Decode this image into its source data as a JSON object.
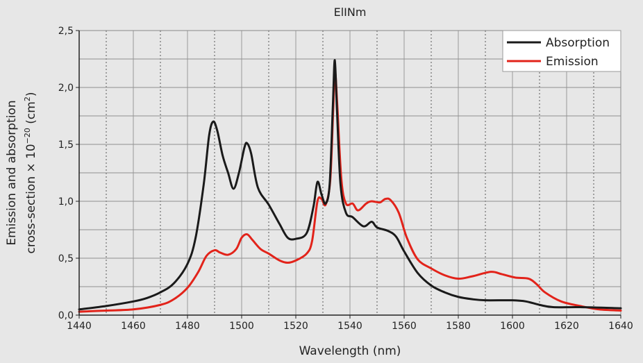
{
  "chart_data": {
    "type": "line",
    "title": "ElINm",
    "xlabel": "Wavelength (nm)",
    "ylabel_line1": "Emission and absorption",
    "ylabel_line2_pre": "cross-section × 10",
    "ylabel_line2_exp": "−20",
    "ylabel_line2_unit": " (cm",
    "ylabel_line2_unit_exp": "2",
    "ylabel_line2_close": ")",
    "xlim": [
      1440,
      1640
    ],
    "ylim": [
      0,
      2.5
    ],
    "x_ticks": [
      1440,
      1460,
      1480,
      1500,
      1520,
      1540,
      1560,
      1580,
      1600,
      1620,
      1640
    ],
    "x_tick_labels": [
      "1440",
      "1460",
      "1480",
      "1500",
      "1520",
      "1540",
      "1560",
      "1580",
      "1600",
      "1620",
      "1640"
    ],
    "y_ticks": [
      0,
      0.5,
      1.0,
      1.5,
      2.0,
      2.5
    ],
    "y_tick_labels": [
      "0,0",
      "0,5",
      "1,0",
      "1,5",
      "2,0",
      "2,5"
    ],
    "grid": true,
    "legend_position": "top-right",
    "series": [
      {
        "name": "Absorption",
        "color": "#1a1a1a",
        "points": [
          [
            1440,
            0.05
          ],
          [
            1450,
            0.08
          ],
          [
            1460,
            0.12
          ],
          [
            1465,
            0.15
          ],
          [
            1470,
            0.2
          ],
          [
            1475,
            0.28
          ],
          [
            1480,
            0.45
          ],
          [
            1483,
            0.68
          ],
          [
            1486,
            1.15
          ],
          [
            1488,
            1.58
          ],
          [
            1489.5,
            1.7
          ],
          [
            1491,
            1.62
          ],
          [
            1493,
            1.4
          ],
          [
            1495,
            1.25
          ],
          [
            1497,
            1.11
          ],
          [
            1499,
            1.25
          ],
          [
            1501,
            1.47
          ],
          [
            1502,
            1.51
          ],
          [
            1503.5,
            1.42
          ],
          [
            1506,
            1.12
          ],
          [
            1510,
            0.97
          ],
          [
            1514,
            0.8
          ],
          [
            1517,
            0.68
          ],
          [
            1520,
            0.67
          ],
          [
            1524,
            0.72
          ],
          [
            1526.5,
            0.95
          ],
          [
            1528,
            1.17
          ],
          [
            1529.5,
            1.06
          ],
          [
            1531,
            0.98
          ],
          [
            1532.5,
            1.15
          ],
          [
            1533.7,
            1.85
          ],
          [
            1534.4,
            2.24
          ],
          [
            1535.2,
            1.8
          ],
          [
            1536.5,
            1.15
          ],
          [
            1538.5,
            0.9
          ],
          [
            1541,
            0.86
          ],
          [
            1545,
            0.78
          ],
          [
            1548,
            0.82
          ],
          [
            1550,
            0.77
          ],
          [
            1554,
            0.74
          ],
          [
            1557,
            0.69
          ],
          [
            1560,
            0.56
          ],
          [
            1565,
            0.37
          ],
          [
            1570,
            0.26
          ],
          [
            1575,
            0.2
          ],
          [
            1580,
            0.16
          ],
          [
            1585,
            0.14
          ],
          [
            1590,
            0.13
          ],
          [
            1600,
            0.13
          ],
          [
            1605,
            0.12
          ],
          [
            1610,
            0.09
          ],
          [
            1615,
            0.07
          ],
          [
            1625,
            0.07
          ],
          [
            1640,
            0.06
          ]
        ]
      },
      {
        "name": "Emission",
        "color": "#e2231a",
        "points": [
          [
            1440,
            0.03
          ],
          [
            1450,
            0.04
          ],
          [
            1460,
            0.05
          ],
          [
            1470,
            0.09
          ],
          [
            1475,
            0.14
          ],
          [
            1480,
            0.24
          ],
          [
            1484,
            0.38
          ],
          [
            1487,
            0.52
          ],
          [
            1490,
            0.57
          ],
          [
            1492,
            0.55
          ],
          [
            1495,
            0.53
          ],
          [
            1498,
            0.58
          ],
          [
            1500,
            0.68
          ],
          [
            1502,
            0.71
          ],
          [
            1504,
            0.66
          ],
          [
            1507,
            0.58
          ],
          [
            1510,
            0.54
          ],
          [
            1514,
            0.48
          ],
          [
            1517,
            0.46
          ],
          [
            1520,
            0.48
          ],
          [
            1524,
            0.54
          ],
          [
            1526,
            0.65
          ],
          [
            1528,
            1.0
          ],
          [
            1529.5,
            1.02
          ],
          [
            1531,
            0.97
          ],
          [
            1532.7,
            1.18
          ],
          [
            1533.8,
            1.8
          ],
          [
            1534.5,
            2.13
          ],
          [
            1535.3,
            1.85
          ],
          [
            1536.8,
            1.2
          ],
          [
            1538.5,
            0.98
          ],
          [
            1541,
            0.98
          ],
          [
            1543,
            0.92
          ],
          [
            1546,
            0.98
          ],
          [
            1548,
            1.0
          ],
          [
            1551,
            0.99
          ],
          [
            1553,
            1.02
          ],
          [
            1555,
            1.01
          ],
          [
            1558,
            0.9
          ],
          [
            1561,
            0.68
          ],
          [
            1565,
            0.49
          ],
          [
            1570,
            0.41
          ],
          [
            1575,
            0.35
          ],
          [
            1580,
            0.32
          ],
          [
            1585,
            0.34
          ],
          [
            1592,
            0.38
          ],
          [
            1596,
            0.36
          ],
          [
            1601,
            0.33
          ],
          [
            1606,
            0.32
          ],
          [
            1609,
            0.27
          ],
          [
            1612,
            0.2
          ],
          [
            1618,
            0.12
          ],
          [
            1625,
            0.08
          ],
          [
            1632,
            0.05
          ],
          [
            1640,
            0.04
          ]
        ]
      }
    ]
  }
}
